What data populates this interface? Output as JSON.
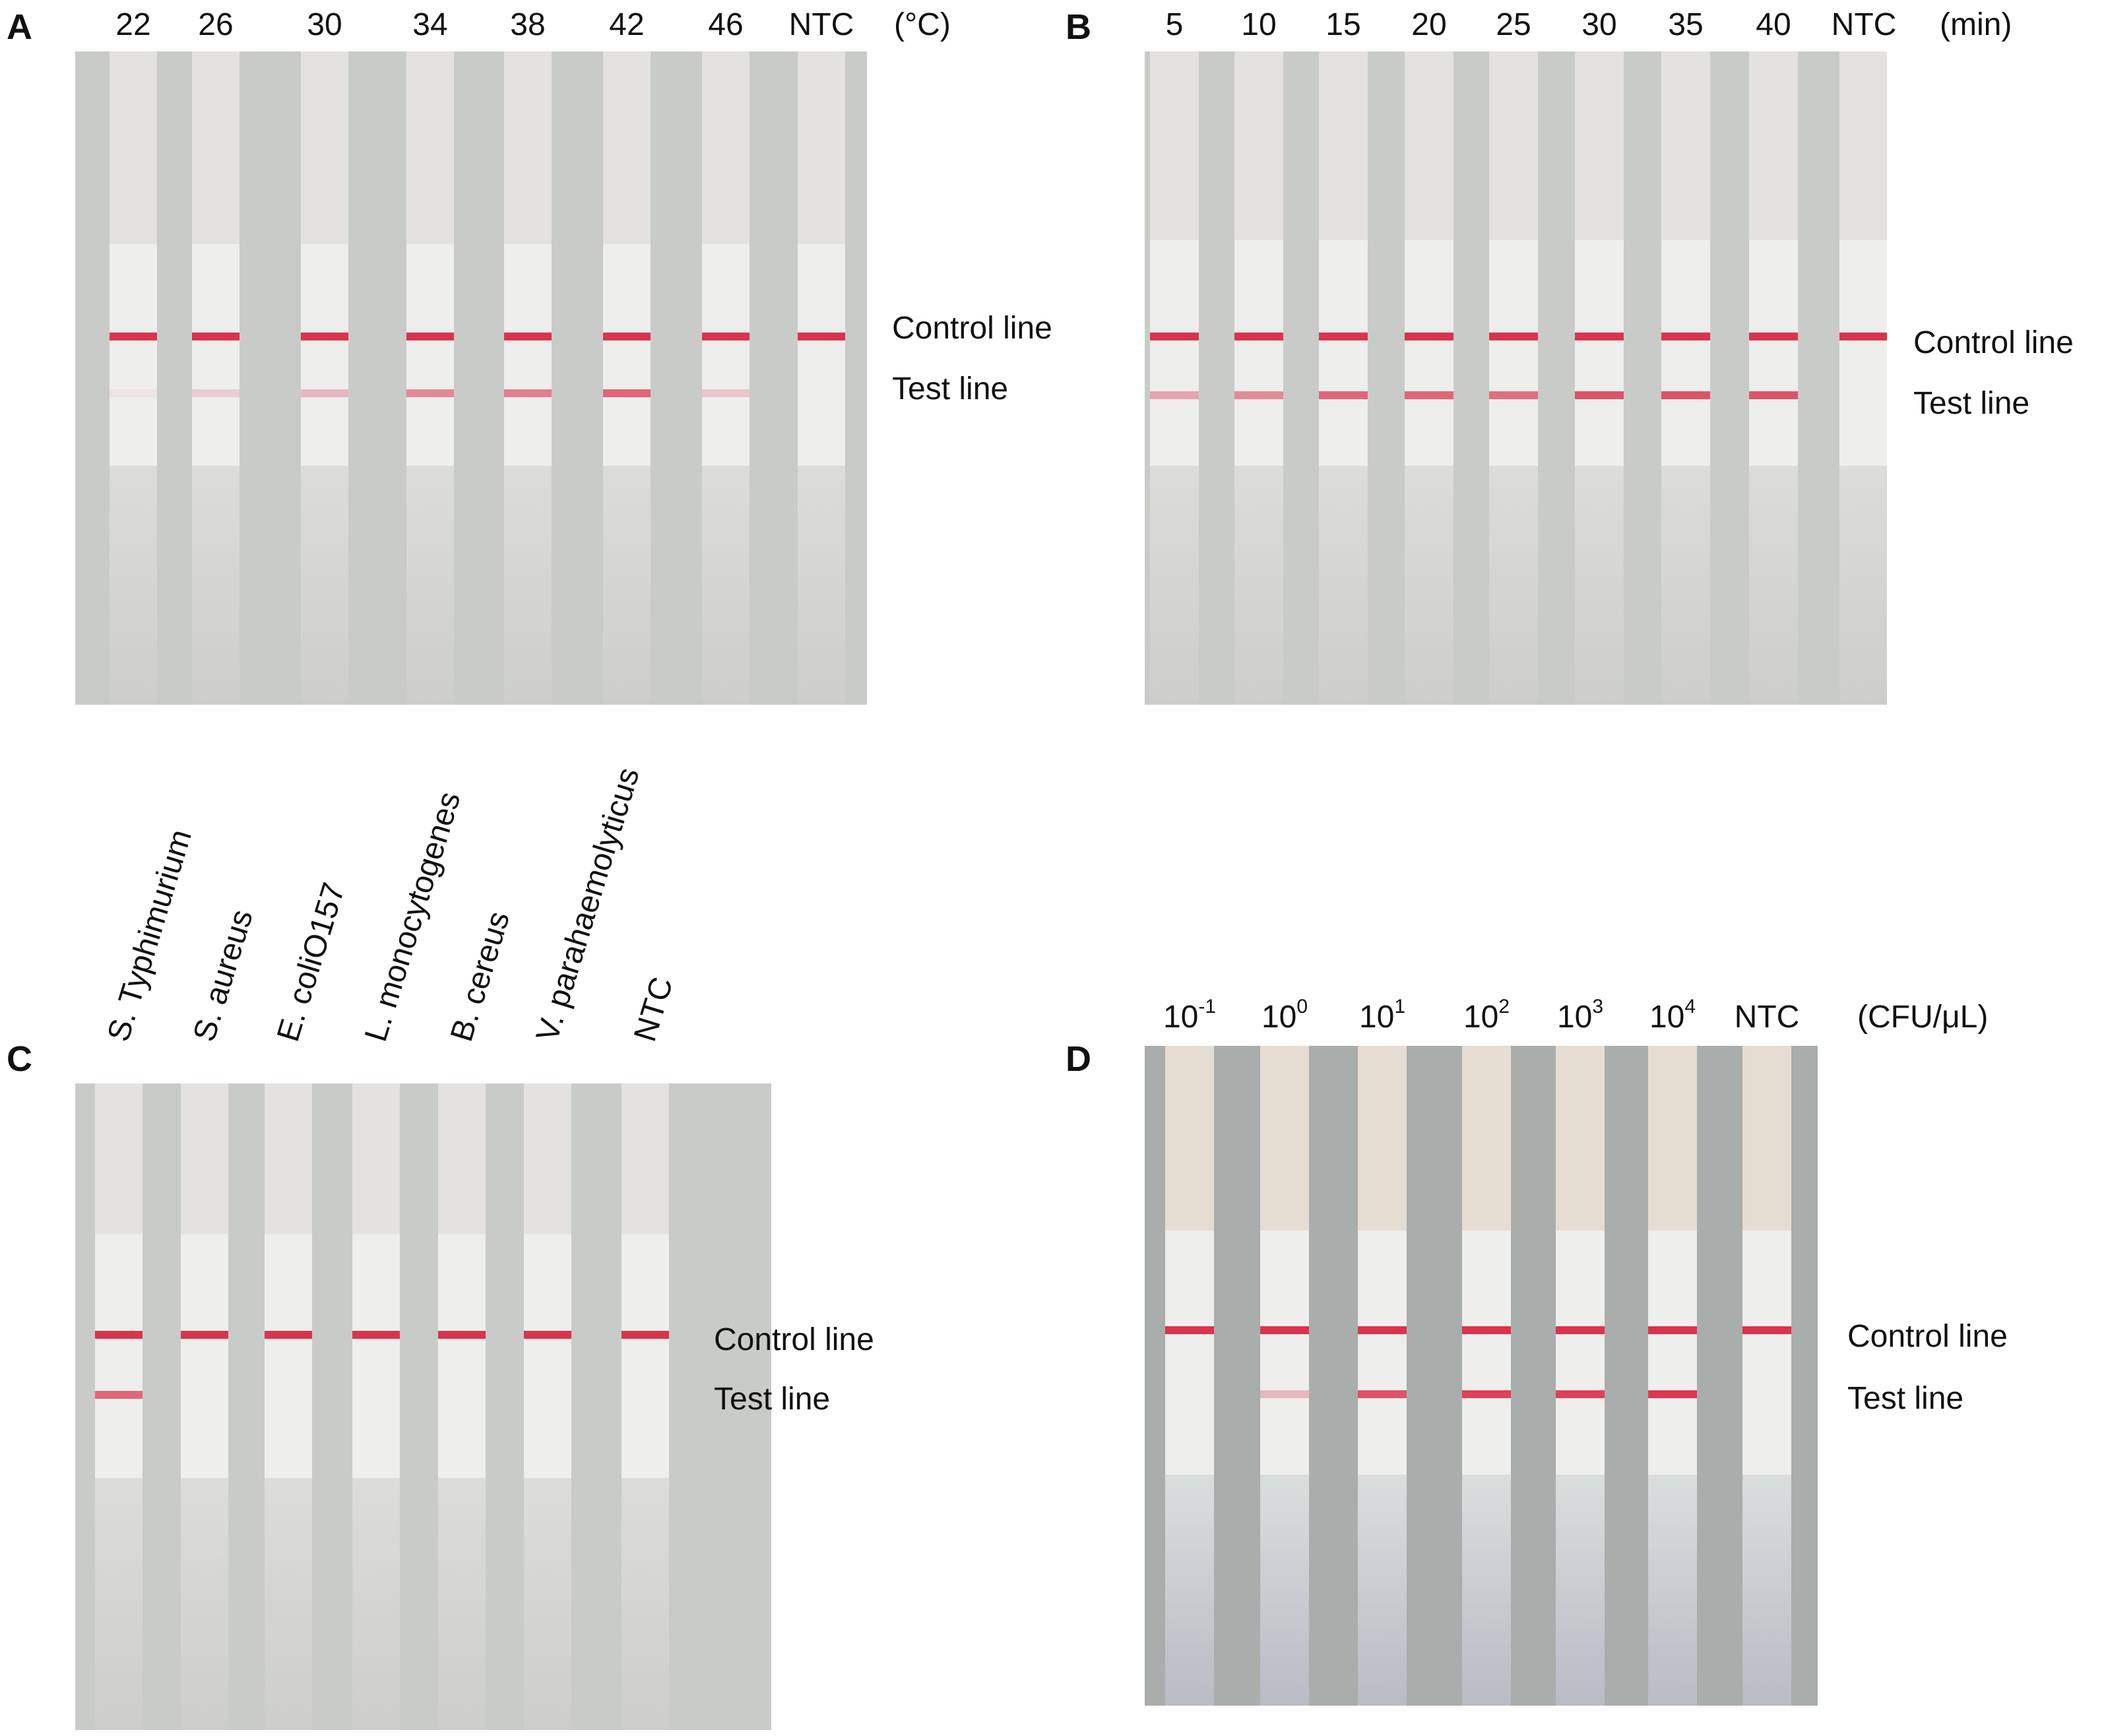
{
  "panels": [
    {
      "letter": "A",
      "unit": "(°C)",
      "lanes": [
        {
          "label": "22",
          "test": 0.05
        },
        {
          "label": "26",
          "test": 0.18
        },
        {
          "label": "30",
          "test": 0.3
        },
        {
          "label": "34",
          "test": 0.55
        },
        {
          "label": "38",
          "test": 0.6
        },
        {
          "label": "42",
          "test": 0.75
        },
        {
          "label": "46",
          "test": 0.22
        },
        {
          "label": "NTC",
          "test": 0
        }
      ],
      "control_line_label": "Control line",
      "test_line_label": "Test line"
    },
    {
      "letter": "B",
      "unit": "(min)",
      "lanes": [
        {
          "label": "5",
          "test": 0.4
        },
        {
          "label": "10",
          "test": 0.55
        },
        {
          "label": "15",
          "test": 0.75
        },
        {
          "label": "20",
          "test": 0.75
        },
        {
          "label": "25",
          "test": 0.7
        },
        {
          "label": "30",
          "test": 0.85
        },
        {
          "label": "35",
          "test": 0.85
        },
        {
          "label": "40",
          "test": 0.85
        },
        {
          "label": "NTC",
          "test": 0
        }
      ],
      "control_line_label": "Control line",
      "test_line_label": "Test line"
    },
    {
      "letter": "C",
      "lanes": [
        {
          "label": "S. Typhimurium",
          "test": 0.75
        },
        {
          "label": "S. aureus",
          "test": 0
        },
        {
          "label": "E. coliO157",
          "test": 0
        },
        {
          "label": "L. monocytogenes",
          "test": 0
        },
        {
          "label": "B. cereus",
          "test": 0
        },
        {
          "label": "V. parahaemolyticus",
          "test": 0
        },
        {
          "label": "NTC",
          "test": 0
        }
      ],
      "control_line_label": "Control line",
      "test_line_label": "Test line"
    },
    {
      "letter": "D",
      "unit": "(CFU/μL)",
      "lanes": [
        {
          "base": "10",
          "exp": "-1",
          "test": 0
        },
        {
          "base": "10",
          "exp": "0",
          "test": 0.3
        },
        {
          "base": "10",
          "exp": "1",
          "test": 0.85
        },
        {
          "base": "10",
          "exp": "2",
          "test": 0.95
        },
        {
          "base": "10",
          "exp": "3",
          "test": 0.95
        },
        {
          "base": "10",
          "exp": "4",
          "test": 1.0
        },
        {
          "label": "NTC",
          "test": 0
        }
      ],
      "control_line_label": "Control line",
      "test_line_label": "Test line"
    }
  ],
  "colors": {
    "band": "#d8243f",
    "background_abc": "#c9cbc8",
    "background_d": "#a9adab",
    "strip": "#eeeeec"
  }
}
